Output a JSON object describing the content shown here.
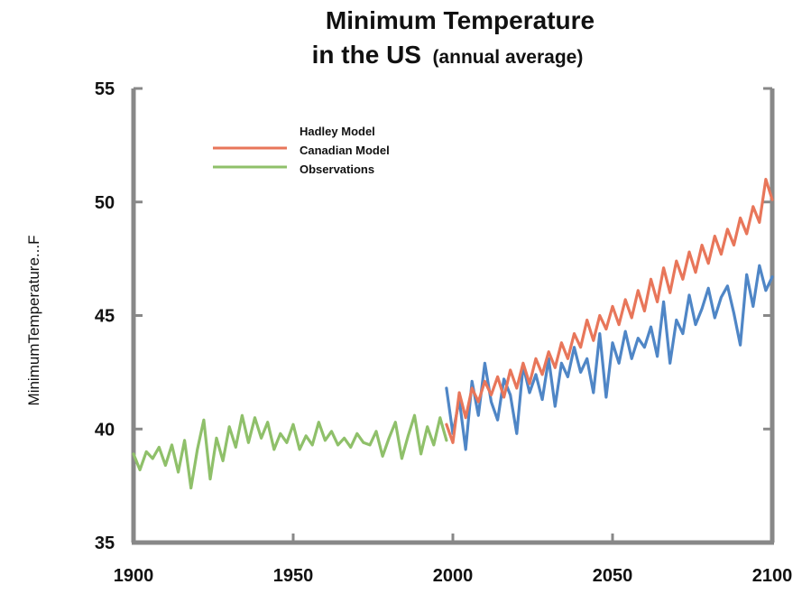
{
  "chart_data": {
    "type": "line",
    "title_line1": "Minimum Temperature",
    "title_line2_main": "in the US",
    "title_line2_sub": "(annual average)",
    "xlabel": "",
    "ylabel": "MinimumTemperature...F",
    "xlim": [
      1900,
      2100
    ],
    "ylim": [
      35,
      55
    ],
    "x_ticks": [
      1900,
      1950,
      2000,
      2050,
      2100
    ],
    "y_ticks": [
      35,
      40,
      45,
      50,
      55
    ],
    "grid": false,
    "legend_position": "top-left",
    "legend": [
      "Hadley Model",
      "Canadian Model",
      "Observations"
    ],
    "series": [
      {
        "name": "Observations",
        "color": "#8fc06a",
        "x": [
          1900,
          1902,
          1904,
          1906,
          1908,
          1910,
          1912,
          1914,
          1916,
          1918,
          1920,
          1922,
          1924,
          1926,
          1928,
          1930,
          1932,
          1934,
          1936,
          1938,
          1940,
          1942,
          1944,
          1946,
          1948,
          1950,
          1952,
          1954,
          1956,
          1958,
          1960,
          1962,
          1964,
          1966,
          1968,
          1970,
          1972,
          1974,
          1976,
          1978,
          1980,
          1982,
          1984,
          1986,
          1988,
          1990,
          1992,
          1994,
          1996,
          1998
        ],
        "y": [
          38.9,
          38.2,
          39.0,
          38.7,
          39.2,
          38.4,
          39.3,
          38.1,
          39.5,
          37.4,
          39.1,
          40.4,
          37.8,
          39.6,
          38.6,
          40.1,
          39.2,
          40.6,
          39.4,
          40.5,
          39.6,
          40.3,
          39.1,
          39.8,
          39.4,
          40.2,
          39.1,
          39.7,
          39.3,
          40.3,
          39.5,
          39.9,
          39.3,
          39.6,
          39.2,
          39.8,
          39.4,
          39.3,
          39.9,
          38.8,
          39.6,
          40.3,
          38.7,
          39.7,
          40.6,
          38.9,
          40.1,
          39.3,
          40.5,
          39.5
        ]
      },
      {
        "name": "Hadley Model",
        "color": "#e8765a",
        "x": [
          1998,
          2000,
          2002,
          2004,
          2006,
          2008,
          2010,
          2012,
          2014,
          2016,
          2018,
          2020,
          2022,
          2024,
          2026,
          2028,
          2030,
          2032,
          2034,
          2036,
          2038,
          2040,
          2042,
          2044,
          2046,
          2048,
          2050,
          2052,
          2054,
          2056,
          2058,
          2060,
          2062,
          2064,
          2066,
          2068,
          2070,
          2072,
          2074,
          2076,
          2078,
          2080,
          2082,
          2084,
          2086,
          2088,
          2090,
          2092,
          2094,
          2096,
          2098,
          2100
        ],
        "y": [
          40.2,
          39.4,
          41.6,
          40.5,
          41.8,
          41.2,
          42.1,
          41.5,
          42.3,
          41.4,
          42.6,
          41.8,
          42.9,
          42.0,
          43.1,
          42.4,
          43.4,
          42.7,
          43.8,
          43.1,
          44.2,
          43.6,
          44.8,
          43.9,
          45.0,
          44.4,
          45.4,
          44.6,
          45.7,
          44.9,
          46.1,
          45.2,
          46.6,
          45.6,
          47.1,
          46.0,
          47.4,
          46.6,
          47.8,
          46.9,
          48.1,
          47.3,
          48.5,
          47.7,
          48.8,
          48.1,
          49.3,
          48.6,
          49.8,
          49.1,
          51.0,
          50.1
        ]
      },
      {
        "name": "Canadian Model",
        "color": "#4f86c6",
        "x": [
          1998,
          2000,
          2002,
          2004,
          2006,
          2008,
          2010,
          2012,
          2014,
          2016,
          2018,
          2020,
          2022,
          2024,
          2026,
          2028,
          2030,
          2032,
          2034,
          2036,
          2038,
          2040,
          2042,
          2044,
          2046,
          2048,
          2050,
          2052,
          2054,
          2056,
          2058,
          2060,
          2062,
          2064,
          2066,
          2068,
          2070,
          2072,
          2074,
          2076,
          2078,
          2080,
          2082,
          2084,
          2086,
          2088,
          2090,
          2092,
          2094,
          2096,
          2098,
          2100
        ],
        "y": [
          41.8,
          39.8,
          41.3,
          39.1,
          42.1,
          40.6,
          42.9,
          41.2,
          40.4,
          42.2,
          41.5,
          39.8,
          42.8,
          41.6,
          42.4,
          41.3,
          43.1,
          41.0,
          42.9,
          42.3,
          43.6,
          42.5,
          43.1,
          41.6,
          44.2,
          41.4,
          43.8,
          42.9,
          44.3,
          43.1,
          44.0,
          43.6,
          44.5,
          43.2,
          45.6,
          42.9,
          44.8,
          44.2,
          45.9,
          44.6,
          45.3,
          46.2,
          44.9,
          45.8,
          46.3,
          45.1,
          43.7,
          46.8,
          45.4,
          47.2,
          46.1,
          46.7
        ]
      }
    ]
  }
}
